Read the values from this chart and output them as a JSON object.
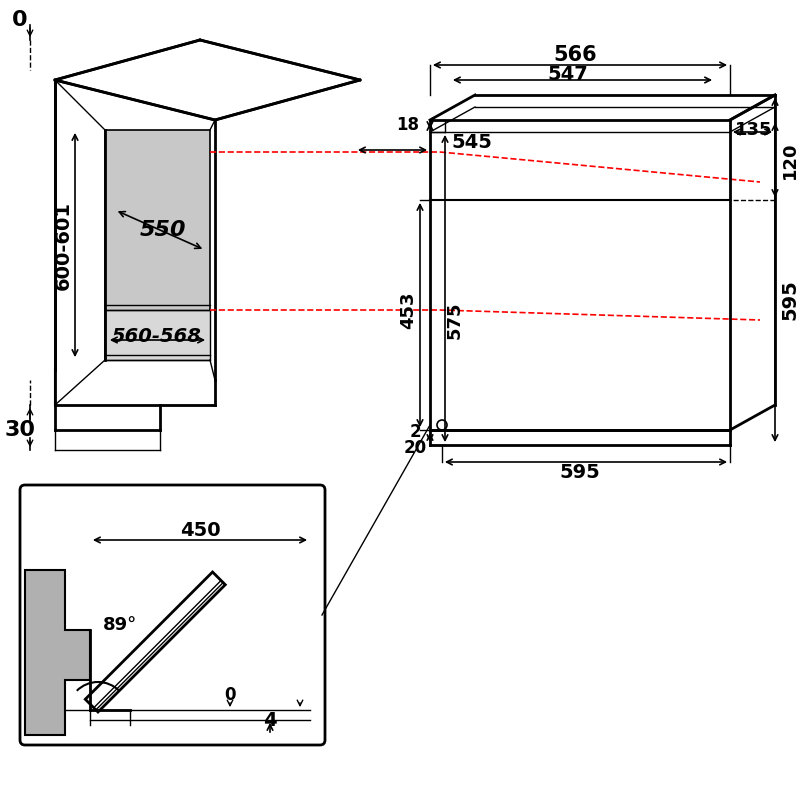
{
  "bg_color": "#ffffff",
  "line_color": "#000000",
  "red_dashed_color": "#ff0000",
  "gray_fill": "#c8c8c8",
  "light_gray": "#e0e0e0",
  "dim_font_size": 13,
  "dim_font_size_large": 16,
  "annotations": {
    "label_0_top": "0",
    "label_30": "30",
    "label_600_601": "600-601",
    "label_550": "550",
    "label_560_568": "560-568",
    "label_566": "566",
    "label_547": "547",
    "label_545": "545",
    "label_135": "135",
    "label_18": "18",
    "label_120": "120",
    "label_453": "453",
    "label_575": "575",
    "label_595_right": "595",
    "label_2": "2",
    "label_595_bottom": "595",
    "label_20": "20",
    "label_450": "450",
    "label_89": "89°",
    "label_0_door": "0",
    "label_4": "4"
  }
}
